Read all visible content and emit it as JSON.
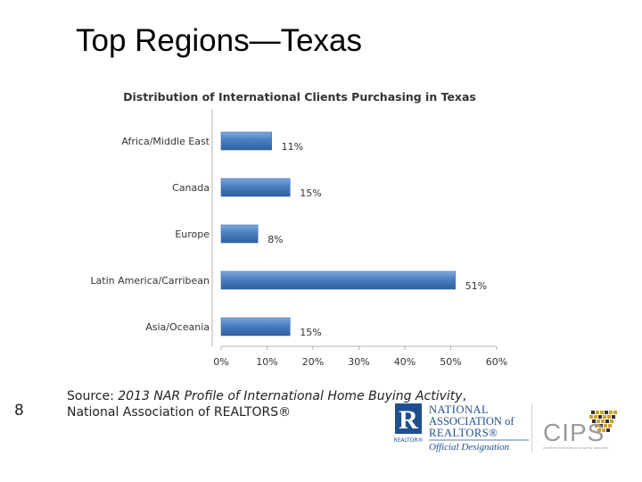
{
  "slide": {
    "title": "Top Regions—Texas",
    "number": "8"
  },
  "source": {
    "prefix": "Source: ",
    "title": "2013 NAR Profile of International Home Buying Activity",
    "suffix": ",",
    "org": "National Association of REALTORS®"
  },
  "logos": {
    "nar_line1": "NATIONAL",
    "nar_line2": "ASSOCIATION of",
    "nar_line3": "REALTORS®",
    "nar_sub": "Official Designation",
    "nar_mark": "REALTOR®",
    "cips": "CIPS",
    "cips_tagline": "certified international property specialist"
  },
  "colors": {
    "bar": "#4a7fc0",
    "nar_blue": "#1f4f8f",
    "cips_gold": "#c9a227",
    "cips_gray": "#9a9a9a"
  },
  "chart_data": {
    "type": "bar",
    "orientation": "horizontal",
    "title": "Distribution of International Clients Purchasing in Texas",
    "categories": [
      "Africa/Middle East",
      "Canada",
      "Europe",
      "Latin America/Carribean",
      "Asia/Oceania"
    ],
    "values": [
      11,
      15,
      8,
      51,
      15
    ],
    "value_labels": [
      "11%",
      "15%",
      "8%",
      "51%",
      "15%"
    ],
    "xlim": [
      0,
      60
    ],
    "xticks": [
      0,
      10,
      20,
      30,
      40,
      50,
      60
    ],
    "xtick_labels": [
      "0%",
      "10%",
      "20%",
      "30%",
      "40%",
      "50%",
      "60%"
    ],
    "xlabel": "",
    "ylabel": "",
    "grid": false,
    "legend": "none"
  }
}
